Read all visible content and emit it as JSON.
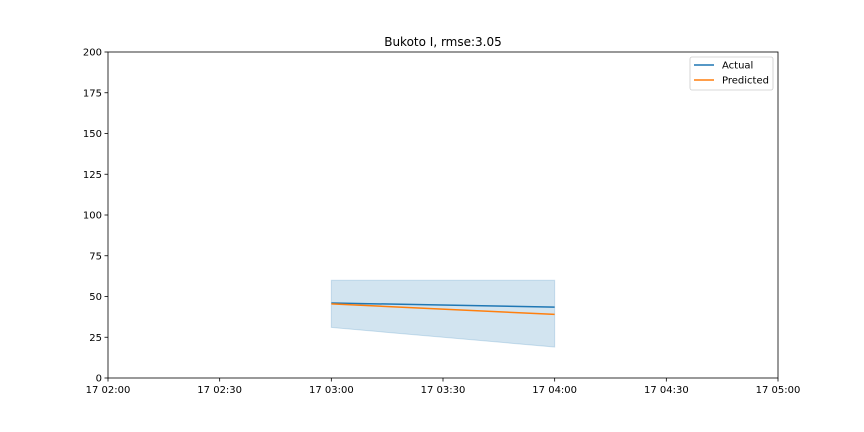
{
  "chart_data": {
    "type": "line",
    "title": "Bukoto I, rmse:3.05",
    "xlabel": "",
    "ylabel": "",
    "x_ticks": [
      "17 02:00",
      "17 02:30",
      "17 03:00",
      "17 03:30",
      "17 04:00",
      "17 04:30",
      "17 05:00"
    ],
    "xlim": [
      "17 02:00",
      "17 05:00"
    ],
    "ylim": [
      0,
      200
    ],
    "y_ticks": [
      0,
      25,
      50,
      75,
      100,
      125,
      150,
      175,
      200
    ],
    "grid": false,
    "legend_position": "top-right",
    "series": [
      {
        "name": "Actual",
        "color": "#1f77b4",
        "x": [
          "17 03:00",
          "17 04:00"
        ],
        "y": [
          46,
          43.5
        ]
      },
      {
        "name": "Predicted",
        "color": "#ff7f0e",
        "x": [
          "17 03:00",
          "17 04:00"
        ],
        "y": [
          45.5,
          39
        ]
      }
    ],
    "band": {
      "color": "#1f77b4",
      "x": [
        "17 03:00",
        "17 04:00"
      ],
      "upper": [
        60,
        60
      ],
      "lower": [
        31,
        19
      ]
    }
  }
}
